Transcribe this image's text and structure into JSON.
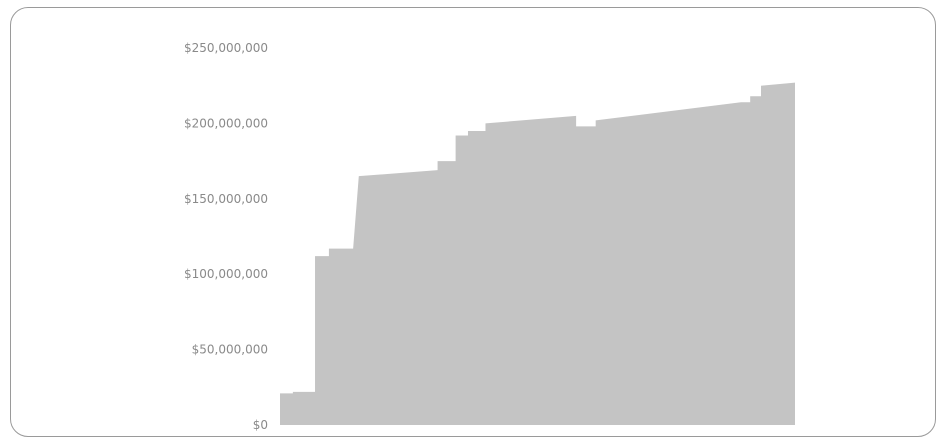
{
  "chart_data": {
    "type": "area",
    "title": "",
    "xlabel": "",
    "ylabel": "",
    "ylim": [
      0,
      250000000
    ],
    "y_tick_values": [
      0,
      50000000,
      100000000,
      150000000,
      200000000,
      250000000
    ],
    "y_tick_labels": [
      "$0",
      "$50,000,000",
      "$100,000,000",
      "$150,000,000",
      "$200,000,000",
      "$250,000,000"
    ],
    "grid": false,
    "legend": "none",
    "fill_color": "#c4c4c4",
    "series": [
      {
        "values": [
          [
            0,
            21000000
          ],
          [
            2.5,
            21000000
          ],
          [
            2.5,
            22000000
          ],
          [
            6.8,
            22000000
          ],
          [
            6.8,
            112000000
          ],
          [
            9.5,
            112000000
          ],
          [
            9.5,
            117000000
          ],
          [
            14.2,
            117000000
          ],
          [
            15.3,
            165000000
          ],
          [
            30.6,
            169000000
          ],
          [
            30.6,
            175000000
          ],
          [
            34.1,
            175000000
          ],
          [
            34.1,
            192000000
          ],
          [
            36.5,
            192000000
          ],
          [
            36.5,
            195000000
          ],
          [
            39.9,
            195000000
          ],
          [
            39.9,
            200000000
          ],
          [
            57.5,
            205000000
          ],
          [
            57.5,
            198000000
          ],
          [
            61.3,
            198000000
          ],
          [
            61.3,
            202000000
          ],
          [
            89.5,
            214000000
          ],
          [
            91.3,
            214000000
          ],
          [
            91.3,
            218000000
          ],
          [
            93.4,
            218000000
          ],
          [
            93.4,
            225000000
          ],
          [
            100,
            227000000
          ]
        ]
      }
    ]
  }
}
